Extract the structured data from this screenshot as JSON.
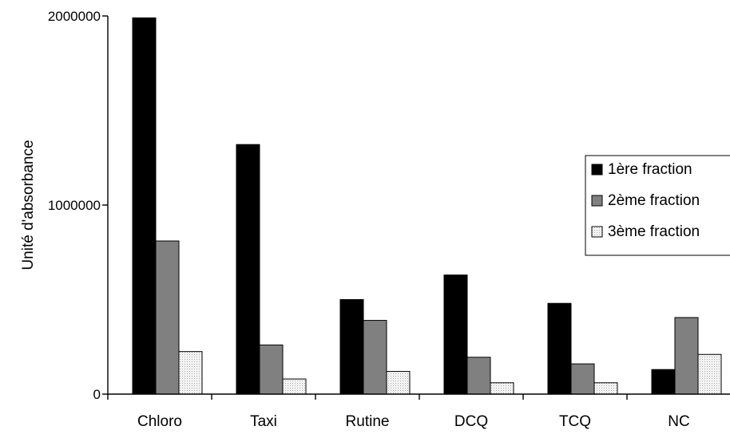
{
  "chart_data": {
    "type": "bar",
    "title": "",
    "xlabel": "",
    "ylabel": "Unité d'absorbance",
    "ylim": [
      0,
      2000000
    ],
    "yticks": [
      0,
      1000000,
      2000000
    ],
    "ytick_labels": [
      "0",
      "1000000",
      "2000000"
    ],
    "grid": false,
    "legend_position": "right",
    "categories": [
      "Chloro",
      "Taxi",
      "Rutine",
      "DCQ",
      "TCQ",
      "NC"
    ],
    "series": [
      {
        "name": "1ère fraction",
        "fill": "#000000",
        "pattern": "solid",
        "values": [
          1990000,
          1320000,
          500000,
          630000,
          480000,
          130000
        ]
      },
      {
        "name": "2ème fraction",
        "fill": "#808080",
        "pattern": "solid",
        "values": [
          810000,
          260000,
          390000,
          195000,
          160000,
          405000
        ]
      },
      {
        "name": "3ème fraction",
        "fill": "#ffffff",
        "pattern": "dotted",
        "values": [
          225000,
          80000,
          120000,
          60000,
          60000,
          210000
        ]
      }
    ]
  }
}
